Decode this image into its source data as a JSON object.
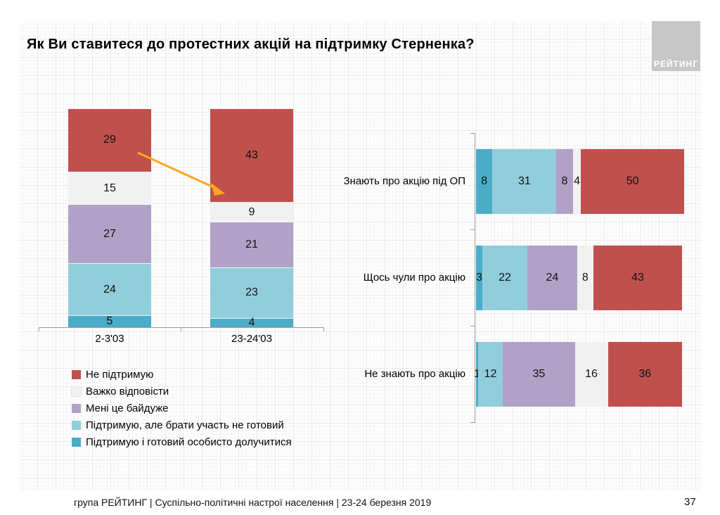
{
  "title": "Як Ви ставитеся до протестних акцій на підтримку Стерненка?",
  "logo": {
    "text": "РЕЙТИНГ"
  },
  "footer": {
    "text": "група РЕЙТИНГ | Суспільно-політичні настрої населення  | 23-24 березня 2019",
    "page": "37"
  },
  "colors": {
    "not_support_red": "#c0504d",
    "hard_to_answer_gray": "#f1f1f1",
    "indifferent_purple": "#b2a1c7",
    "support_not_ready_lightblue": "#92cddc",
    "support_ready_teal": "#4bacc6",
    "arrow_orange": "#ffa81e",
    "axis_gray": "#9d9d9d"
  },
  "legend": [
    {
      "label": "Не підтримую",
      "color": "#c0504d"
    },
    {
      "label": "Важко відповісти",
      "color": "#f1f1f1"
    },
    {
      "label": "Мені це байдуже",
      "color": "#b2a1c7"
    },
    {
      "label": "Підтримую, але брати участь не готовий",
      "color": "#92cddc"
    },
    {
      "label": "Підтримую і готовий особисто долучитися",
      "color": "#4bacc6"
    }
  ],
  "chart_data": [
    {
      "type": "bar",
      "subtype": "stacked-column",
      "title": "",
      "categories": [
        "2-3'03",
        "23-24'03"
      ],
      "series": [
        {
          "name": "Не підтримую",
          "color": "#c0504d",
          "values": [
            29,
            43
          ]
        },
        {
          "name": "Важко відповісти",
          "color": "#f1f1f1",
          "values": [
            15,
            9
          ]
        },
        {
          "name": "Мені це байдуже",
          "color": "#b2a1c7",
          "values": [
            27,
            21
          ]
        },
        {
          "name": "Підтримую, але брати участь не готовий",
          "color": "#92cddc",
          "values": [
            24,
            23
          ]
        },
        {
          "name": "Підтримую і готовий особисто долучитися",
          "color": "#4bacc6",
          "values": [
            5,
            4
          ]
        }
      ],
      "ylim": [
        0,
        100
      ],
      "grid": false,
      "annotation": {
        "type": "arrow",
        "note": "29 -> 43",
        "color": "#ffa81e"
      }
    },
    {
      "type": "bar",
      "subtype": "stacked-bar-horizontal",
      "title": "",
      "categories": [
        "Знають про акцію під ОП",
        "Щось чули про акцію",
        "Не знають про акцію"
      ],
      "series": [
        {
          "name": "Підтримую і готовий особисто долучитися",
          "color": "#4bacc6",
          "values": [
            8,
            3,
            1
          ]
        },
        {
          "name": "Підтримую, але брати участь не готовий",
          "color": "#92cddc",
          "values": [
            31,
            22,
            12
          ]
        },
        {
          "name": "Мені це байдуже",
          "color": "#b2a1c7",
          "values": [
            8,
            24,
            35
          ]
        },
        {
          "name": "Важко відповісти",
          "color": "#f1f1f1",
          "values": [
            4,
            8,
            16
          ]
        },
        {
          "name": "Не підтримую",
          "color": "#c0504d",
          "values": [
            50,
            43,
            36
          ]
        }
      ],
      "xlim": [
        0,
        101
      ],
      "grid": false,
      "legend_position": "none"
    }
  ]
}
